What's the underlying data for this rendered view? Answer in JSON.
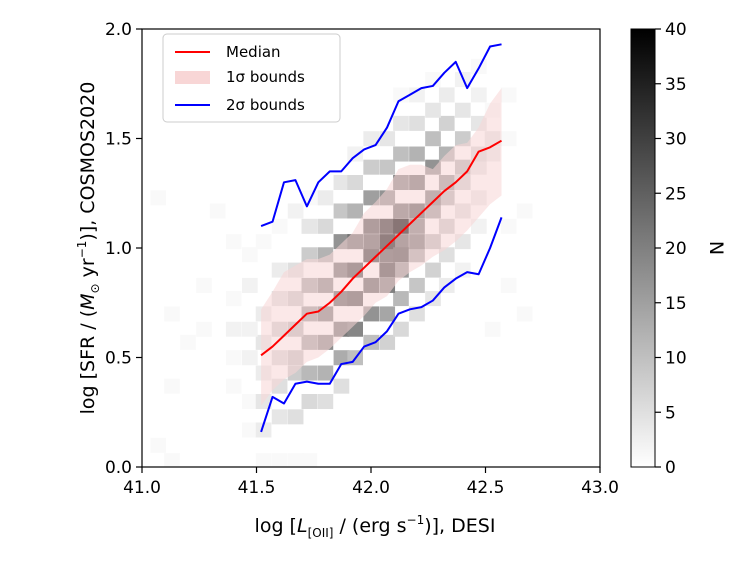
{
  "chart_data": {
    "type": "heatmap",
    "title": "",
    "xlabel": {
      "pre": "log [",
      "sym": "L",
      "sub": "[OII]",
      "mid": " / (erg s",
      "sup": "−1",
      "post": ")], DESI"
    },
    "ylabel": {
      "pre": "log [SFR / (",
      "sym": "M",
      "odot": "⊙",
      "mid": " yr",
      "sup": "−1",
      "post": ")], COSMOS2020"
    },
    "xlim": [
      41.0,
      43.0
    ],
    "ylim": [
      0.0,
      2.0
    ],
    "x_ticks": [
      "41.0",
      "41.5",
      "42.0",
      "42.5",
      "43.0"
    ],
    "y_ticks": [
      "0.0",
      "0.5",
      "1.0",
      "1.5",
      "2.0"
    ],
    "histogram": {
      "x_edges_start": 41.0,
      "x_bin": 0.0667,
      "y_edges_start": 0.0,
      "y_bin": 0.0667,
      "cells": [
        [
          41.53,
          0.03,
          1
        ],
        [
          41.6,
          0.03,
          1
        ],
        [
          41.67,
          0.03,
          1
        ],
        [
          41.73,
          0.03,
          1
        ],
        [
          41.07,
          0.1,
          1
        ],
        [
          41.13,
          0.03,
          1
        ],
        [
          41.47,
          0.17,
          1
        ],
        [
          41.53,
          0.17,
          3
        ],
        [
          41.6,
          0.23,
          4
        ],
        [
          41.67,
          0.23,
          5
        ],
        [
          41.73,
          0.3,
          6
        ],
        [
          41.8,
          0.3,
          5
        ],
        [
          41.87,
          0.37,
          5
        ],
        [
          41.47,
          0.3,
          1
        ],
        [
          41.53,
          0.3,
          4
        ],
        [
          41.6,
          0.37,
          5
        ],
        [
          41.67,
          0.43,
          8
        ],
        [
          41.73,
          0.43,
          11
        ],
        [
          41.8,
          0.43,
          12
        ],
        [
          41.87,
          0.5,
          13
        ],
        [
          41.93,
          0.5,
          10
        ],
        [
          42.0,
          0.57,
          10
        ],
        [
          42.07,
          0.57,
          7
        ],
        [
          42.13,
          0.63,
          6
        ],
        [
          42.2,
          0.7,
          5
        ],
        [
          42.27,
          0.77,
          4
        ],
        [
          42.33,
          0.83,
          3
        ],
        [
          42.4,
          0.9,
          2
        ],
        [
          41.53,
          0.43,
          3
        ],
        [
          41.6,
          0.5,
          6
        ],
        [
          41.67,
          0.5,
          9
        ],
        [
          41.73,
          0.57,
          14
        ],
        [
          41.8,
          0.57,
          18
        ],
        [
          41.87,
          0.63,
          21
        ],
        [
          41.93,
          0.63,
          19
        ],
        [
          42.0,
          0.7,
          17
        ],
        [
          42.07,
          0.7,
          14
        ],
        [
          42.13,
          0.77,
          11
        ],
        [
          42.2,
          0.83,
          9
        ],
        [
          42.27,
          0.9,
          7
        ],
        [
          42.33,
          0.97,
          5
        ],
        [
          42.4,
          1.03,
          4
        ],
        [
          42.47,
          1.1,
          2
        ],
        [
          41.53,
          0.57,
          4
        ],
        [
          41.6,
          0.63,
          7
        ],
        [
          41.67,
          0.63,
          10
        ],
        [
          41.73,
          0.7,
          15
        ],
        [
          41.8,
          0.7,
          20
        ],
        [
          41.87,
          0.77,
          24
        ],
        [
          41.93,
          0.77,
          26
        ],
        [
          42.0,
          0.83,
          24
        ],
        [
          42.07,
          0.83,
          20
        ],
        [
          42.13,
          0.9,
          16
        ],
        [
          42.2,
          0.97,
          13
        ],
        [
          42.27,
          1.03,
          10
        ],
        [
          42.33,
          1.1,
          8
        ],
        [
          42.4,
          1.17,
          5
        ],
        [
          42.47,
          1.23,
          3
        ],
        [
          41.53,
          0.7,
          3
        ],
        [
          41.6,
          0.77,
          5
        ],
        [
          41.67,
          0.77,
          8
        ],
        [
          41.73,
          0.83,
          13
        ],
        [
          41.8,
          0.83,
          18
        ],
        [
          41.87,
          0.9,
          22
        ],
        [
          41.93,
          0.9,
          27
        ],
        [
          42.0,
          0.97,
          29
        ],
        [
          42.07,
          0.97,
          26
        ],
        [
          42.13,
          1.03,
          24
        ],
        [
          42.2,
          1.1,
          20
        ],
        [
          42.27,
          1.17,
          15
        ],
        [
          42.33,
          1.23,
          11
        ],
        [
          42.4,
          1.3,
          7
        ],
        [
          42.47,
          1.37,
          4
        ],
        [
          42.53,
          1.43,
          3
        ],
        [
          41.6,
          0.9,
          3
        ],
        [
          41.67,
          0.9,
          5
        ],
        [
          41.73,
          0.97,
          8
        ],
        [
          41.8,
          0.97,
          12
        ],
        [
          41.87,
          1.03,
          17
        ],
        [
          41.93,
          1.03,
          22
        ],
        [
          42.0,
          1.1,
          26
        ],
        [
          42.07,
          1.1,
          32
        ],
        [
          42.13,
          1.1,
          40
        ],
        [
          42.2,
          1.17,
          25
        ],
        [
          42.27,
          1.23,
          20
        ],
        [
          42.33,
          1.3,
          16
        ],
        [
          42.4,
          1.37,
          11
        ],
        [
          42.47,
          1.43,
          6
        ],
        [
          42.53,
          1.5,
          4
        ],
        [
          42.07,
          1.03,
          36
        ],
        [
          42.07,
          0.9,
          28
        ],
        [
          42.13,
          0.97,
          27
        ],
        [
          42.13,
          1.17,
          22
        ],
        [
          42.2,
          1.03,
          21
        ],
        [
          42.0,
          1.03,
          24
        ],
        [
          41.73,
          1.1,
          4
        ],
        [
          41.8,
          1.1,
          6
        ],
        [
          41.87,
          1.17,
          9
        ],
        [
          41.93,
          1.17,
          12
        ],
        [
          42.0,
          1.23,
          15
        ],
        [
          42.07,
          1.23,
          17
        ],
        [
          42.13,
          1.3,
          19
        ],
        [
          42.2,
          1.3,
          22
        ],
        [
          42.27,
          1.37,
          17
        ],
        [
          42.33,
          1.43,
          12
        ],
        [
          42.4,
          1.5,
          8
        ],
        [
          42.47,
          1.57,
          4
        ],
        [
          41.8,
          1.23,
          3
        ],
        [
          41.87,
          1.3,
          4
        ],
        [
          41.93,
          1.3,
          6
        ],
        [
          42.0,
          1.37,
          8
        ],
        [
          42.07,
          1.37,
          9
        ],
        [
          42.13,
          1.43,
          10
        ],
        [
          42.2,
          1.43,
          12
        ],
        [
          42.27,
          1.5,
          10
        ],
        [
          42.33,
          1.57,
          7
        ],
        [
          42.4,
          1.63,
          4
        ],
        [
          42.47,
          1.7,
          2
        ],
        [
          41.93,
          1.43,
          2
        ],
        [
          42.0,
          1.5,
          3
        ],
        [
          42.07,
          1.5,
          4
        ],
        [
          42.13,
          1.57,
          4
        ],
        [
          42.2,
          1.57,
          5
        ],
        [
          42.27,
          1.63,
          4
        ],
        [
          42.33,
          1.7,
          3
        ],
        [
          42.4,
          1.77,
          2
        ],
        [
          42.2,
          1.7,
          2
        ],
        [
          42.27,
          1.77,
          1
        ],
        [
          42.13,
          1.7,
          1
        ],
        [
          41.07,
          1.23,
          1
        ],
        [
          41.33,
          1.17,
          1
        ],
        [
          41.27,
          0.63,
          1
        ],
        [
          41.13,
          0.37,
          1
        ],
        [
          41.4,
          0.37,
          1
        ],
        [
          41.6,
          1.1,
          1
        ],
        [
          41.67,
          1.17,
          2
        ],
        [
          41.73,
          1.23,
          1
        ],
        [
          41.53,
          1.03,
          1
        ],
        [
          41.4,
          1.03,
          1
        ],
        [
          41.47,
          0.97,
          1
        ],
        [
          42.6,
          1.1,
          1
        ],
        [
          42.67,
          1.17,
          1
        ],
        [
          42.6,
          0.83,
          1
        ],
        [
          42.67,
          0.7,
          1
        ],
        [
          42.53,
          0.63,
          1
        ],
        [
          42.6,
          1.5,
          1
        ],
        [
          42.53,
          1.63,
          1
        ],
        [
          42.6,
          1.7,
          1
        ],
        [
          42.47,
          1.83,
          1
        ],
        [
          41.2,
          0.57,
          1
        ],
        [
          41.13,
          0.7,
          1
        ],
        [
          41.27,
          0.83,
          1
        ],
        [
          41.4,
          0.63,
          2
        ],
        [
          41.47,
          0.63,
          2
        ],
        [
          41.4,
          0.77,
          1
        ],
        [
          41.47,
          0.83,
          2
        ],
        [
          41.47,
          0.5,
          2
        ],
        [
          41.4,
          0.5,
          1
        ]
      ]
    },
    "series": [
      {
        "name": "Median",
        "color": "#ff0000",
        "x": [
          41.52,
          41.57,
          41.62,
          41.67,
          41.72,
          41.77,
          41.82,
          41.87,
          41.92,
          41.97,
          42.02,
          42.07,
          42.12,
          42.17,
          42.22,
          42.27,
          42.32,
          42.37,
          42.42,
          42.47,
          42.52,
          42.57
        ],
        "y": [
          0.51,
          0.55,
          0.6,
          0.65,
          0.7,
          0.71,
          0.75,
          0.8,
          0.86,
          0.91,
          0.96,
          1.01,
          1.06,
          1.11,
          1.16,
          1.21,
          1.26,
          1.3,
          1.35,
          1.44,
          1.46,
          1.49
        ]
      },
      {
        "name": "2σ lower",
        "color": "#0000ff",
        "x": [
          41.52,
          41.57,
          41.62,
          41.67,
          41.72,
          41.77,
          41.82,
          41.87,
          41.92,
          41.97,
          42.02,
          42.07,
          42.12,
          42.17,
          42.22,
          42.27,
          42.32,
          42.37,
          42.42,
          42.47,
          42.52,
          42.57
        ],
        "y": [
          0.16,
          0.32,
          0.29,
          0.38,
          0.39,
          0.38,
          0.38,
          0.47,
          0.48,
          0.55,
          0.57,
          0.62,
          0.7,
          0.72,
          0.73,
          0.76,
          0.82,
          0.86,
          0.89,
          0.88,
          1.0,
          1.14
        ]
      },
      {
        "name": "2σ upper",
        "color": "#0000ff",
        "x": [
          41.52,
          41.57,
          41.62,
          41.67,
          41.72,
          41.77,
          41.82,
          41.87,
          41.92,
          41.97,
          42.02,
          42.07,
          42.12,
          42.17,
          42.22,
          42.27,
          42.32,
          42.37,
          42.42,
          42.47,
          42.52,
          42.57
        ],
        "y": [
          1.1,
          1.12,
          1.3,
          1.31,
          1.19,
          1.3,
          1.35,
          1.35,
          1.41,
          1.45,
          1.47,
          1.55,
          1.67,
          1.7,
          1.73,
          1.74,
          1.8,
          1.85,
          1.73,
          1.82,
          1.92,
          1.93
        ]
      }
    ],
    "band": {
      "name": "1σ bounds",
      "color": "#f8d6d6",
      "x": [
        41.52,
        41.57,
        41.62,
        41.67,
        41.72,
        41.77,
        41.82,
        41.87,
        41.92,
        41.97,
        42.02,
        42.07,
        42.12,
        42.17,
        42.22,
        42.27,
        42.32,
        42.37,
        42.42,
        42.47,
        42.52,
        42.57
      ],
      "lower": [
        0.28,
        0.35,
        0.4,
        0.43,
        0.48,
        0.5,
        0.54,
        0.59,
        0.64,
        0.69,
        0.75,
        0.78,
        0.85,
        0.89,
        0.92,
        0.96,
        0.99,
        1.03,
        1.08,
        1.14,
        1.2,
        1.24
      ],
      "upper": [
        0.72,
        0.8,
        0.89,
        0.92,
        0.95,
        0.95,
        0.97,
        1.02,
        1.07,
        1.16,
        1.21,
        1.27,
        1.36,
        1.38,
        1.38,
        1.36,
        1.42,
        1.47,
        1.48,
        1.55,
        1.66,
        1.73
      ]
    },
    "legend": {
      "position": "top-left",
      "entries": [
        {
          "label": "Median",
          "kind": "line",
          "color": "#ff0000"
        },
        {
          "label": "1σ bounds",
          "kind": "patch",
          "color": "#f8d6d6"
        },
        {
          "label": "2σ bounds",
          "kind": "line",
          "color": "#0000ff"
        }
      ]
    },
    "colorbar": {
      "label": "N",
      "range": [
        0,
        40
      ],
      "ticks": [
        "0",
        "5",
        "10",
        "15",
        "20",
        "25",
        "30",
        "35",
        "40"
      ]
    }
  }
}
